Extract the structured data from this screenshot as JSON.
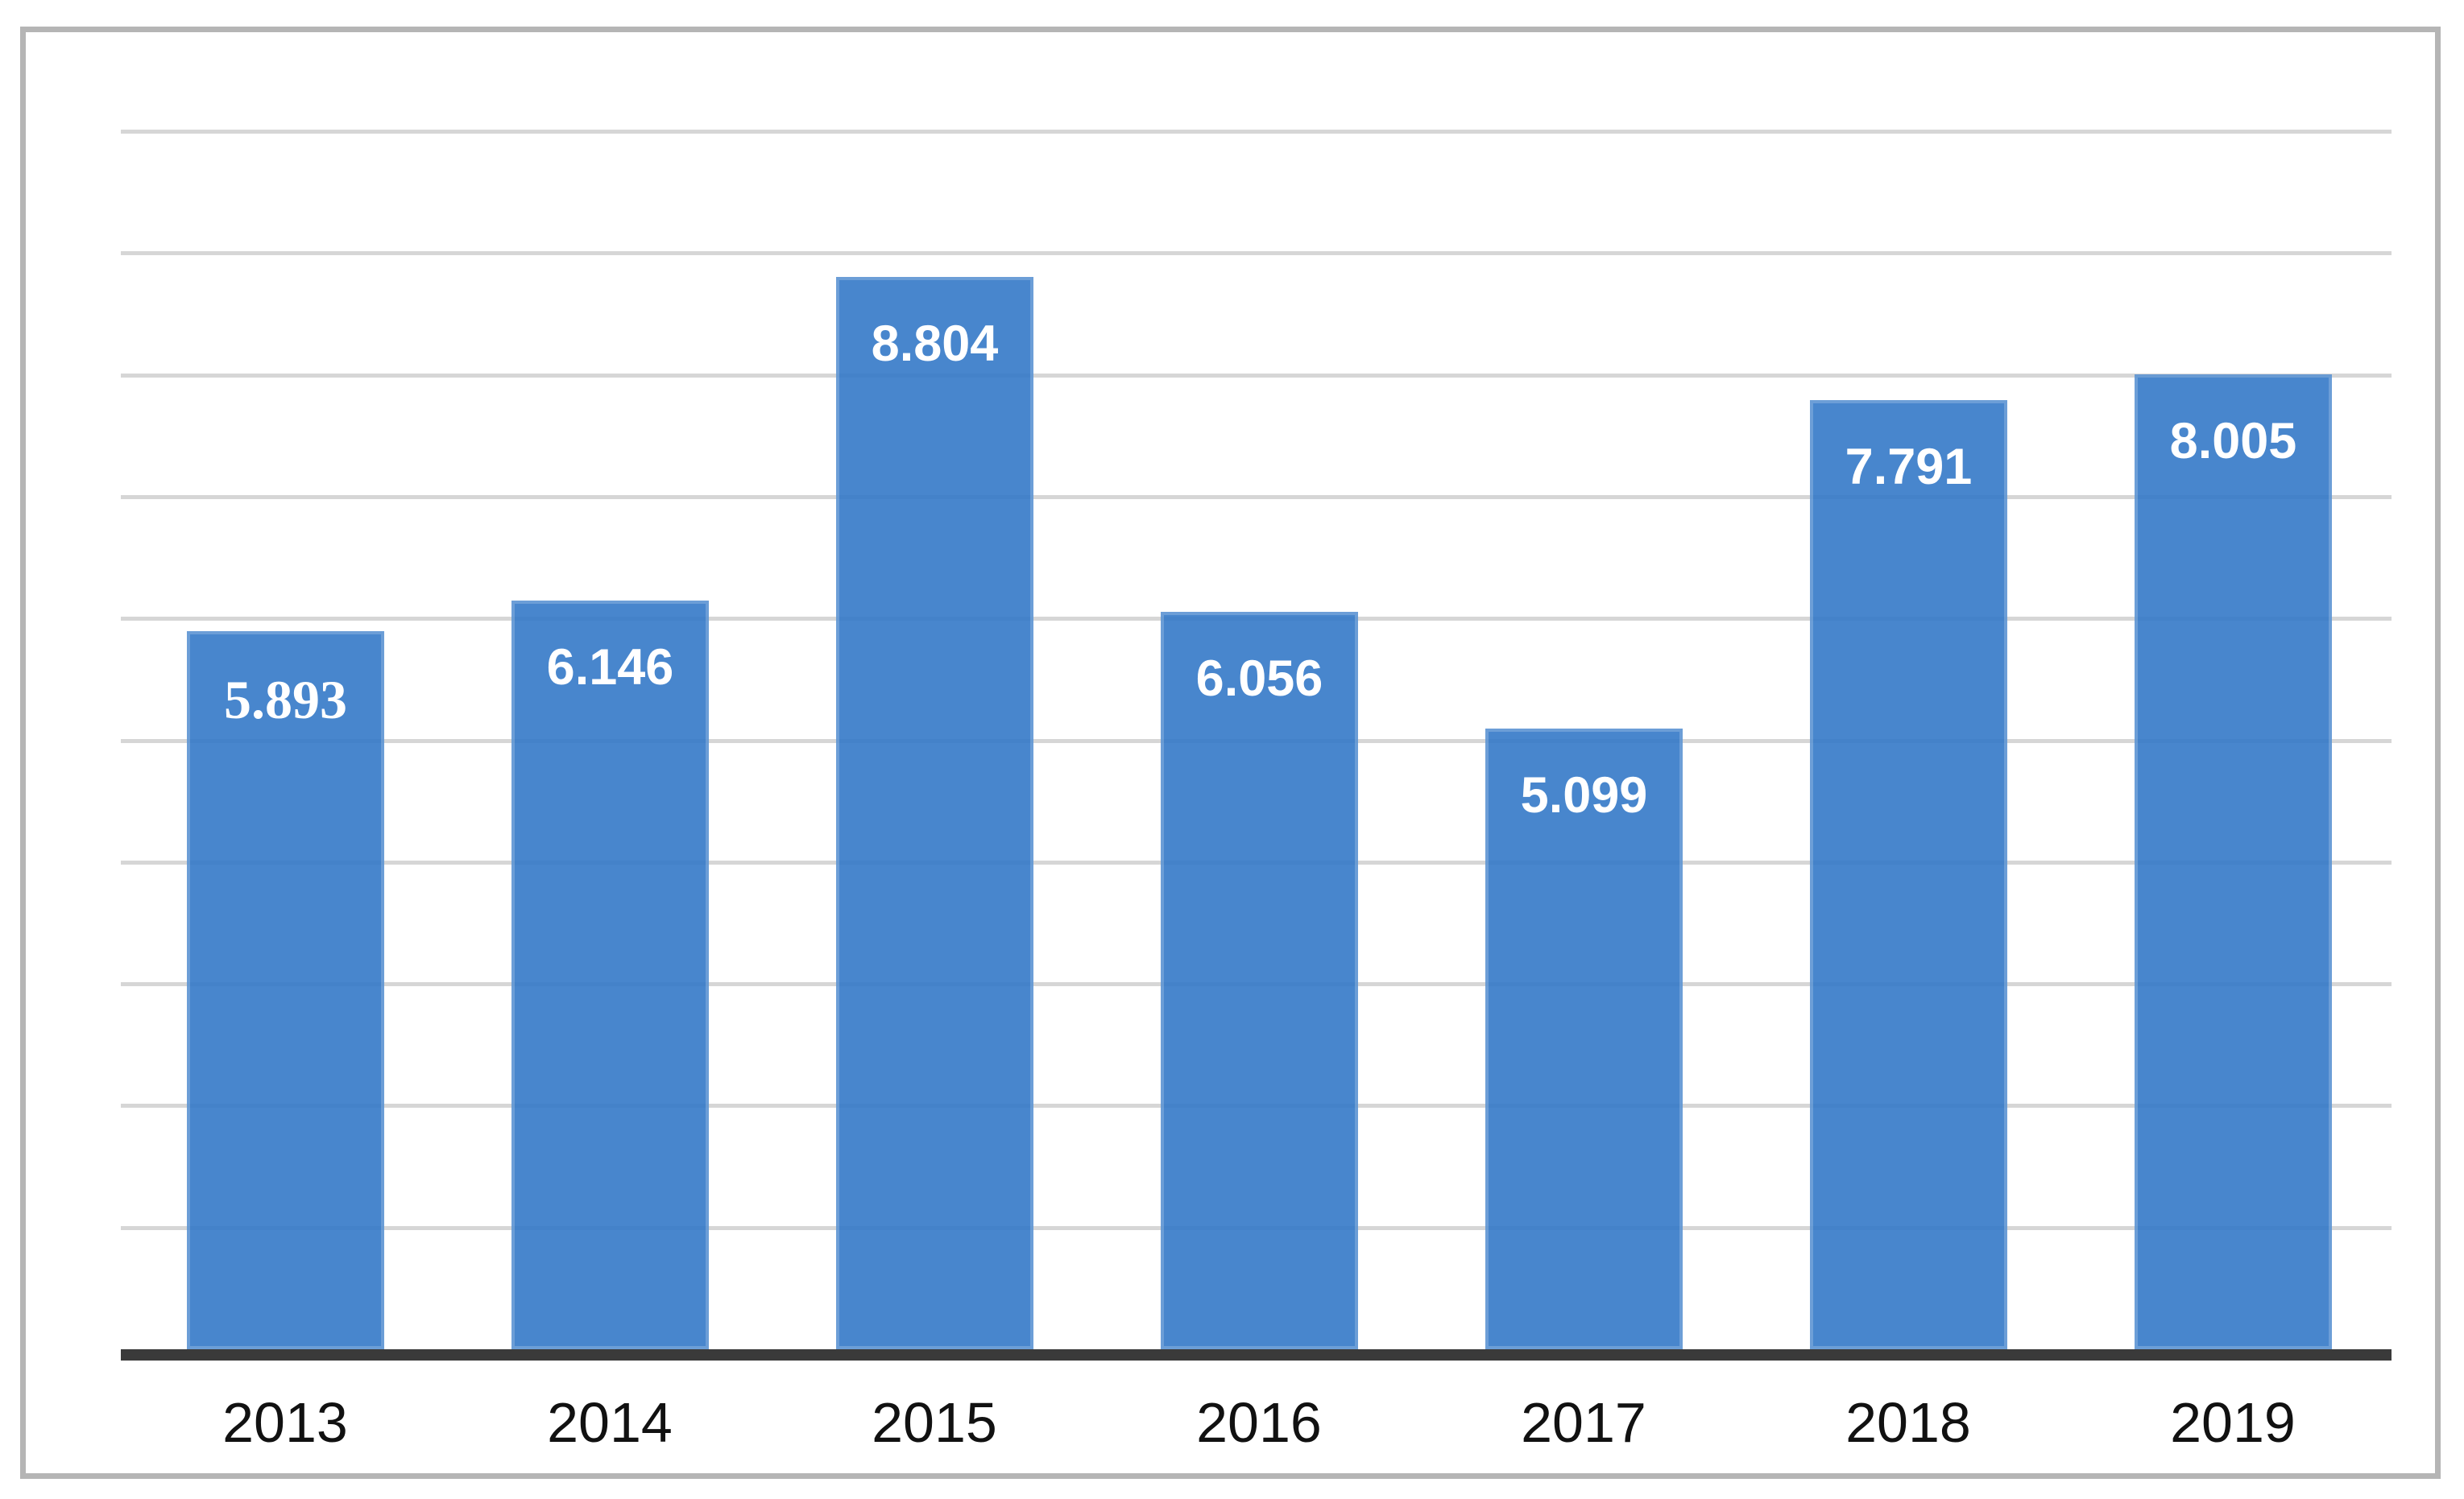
{
  "chart_data": {
    "type": "bar",
    "title": "",
    "xlabel": "",
    "ylabel": "",
    "categories": [
      "2013",
      "2014",
      "2015",
      "2016",
      "2017",
      "2018",
      "2019"
    ],
    "values": [
      5893,
      6146,
      8804,
      6056,
      5099,
      7791,
      8005
    ],
    "value_labels": [
      "5.893",
      "6.146",
      "8.804",
      "6.056",
      "5.099",
      "7.791",
      "8.005"
    ],
    "value_label_styles": [
      "serif",
      "sans",
      "sans",
      "sans",
      "sans",
      "sans",
      "sans"
    ],
    "ylim": [
      0,
      10000
    ],
    "gridline_step": 1000,
    "grid": "horizontal-only",
    "y_axis_tick_labels_visible": false,
    "legend": false,
    "colors": {
      "bar_fill": "#4888CE",
      "bar_fill_rgba_base": [
        52,
        121,
        200,
        0.9
      ],
      "bar_edge_highlight": "rgba(255,255,255,0.20)",
      "value_label": "#FFFFFF",
      "gridline": "#D6D6D6",
      "axis_line": "#3A3A3A",
      "frame_border": "#B5B5B5",
      "x_tick_label": "#111111",
      "background": "#FFFFFF"
    }
  }
}
